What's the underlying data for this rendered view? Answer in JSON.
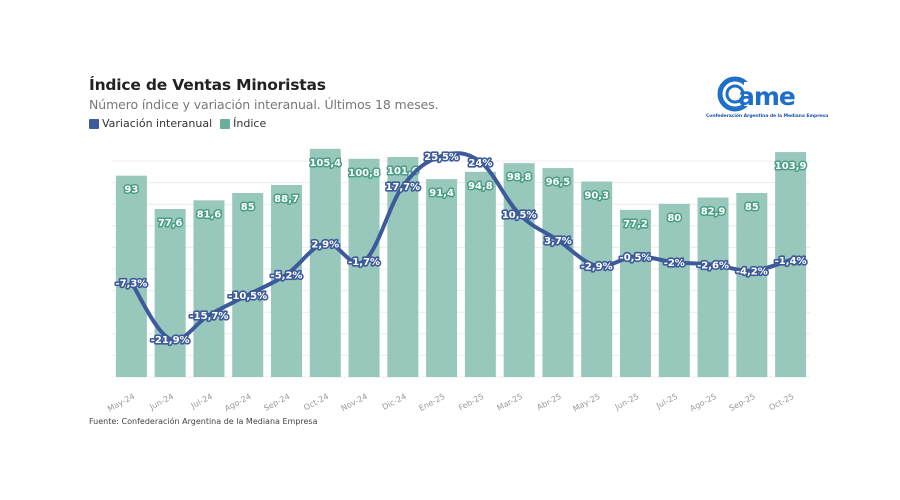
{
  "header": {
    "title": "Índice de Ventas Minoristas",
    "subtitle": "Número índice y variación interanual. Últimos 18 meses."
  },
  "legend": [
    {
      "label": "Variación interanual",
      "color": "#3d5b9a"
    },
    {
      "label": "Índice",
      "color": "#68b09b"
    }
  ],
  "logo": {
    "text": "came",
    "tagline": "Confederación Argentina de la Mediana Empresa",
    "color": "#1f6fc6"
  },
  "source": "Fuente: Confederación Argentina de la Mediana Empresa",
  "colors": {
    "bar": "#98c8bb",
    "line": "#3d5b9a",
    "grid": "#ececec"
  },
  "chart_data": {
    "type": "bar",
    "title": "Índice de Ventas Minoristas",
    "subtitle": "Número índice y variación interanual. Últimos 18 meses.",
    "xlabel": "",
    "ylabel": "",
    "grid": true,
    "legend_position": "top-left",
    "categories": [
      "May-24",
      "Jun-24",
      "Jul-24",
      "Ago-24",
      "Sep-24",
      "Oct-24",
      "Nov-24",
      "Dic-24",
      "Ene-25",
      "Feb-25",
      "Mar-25",
      "Abr-25",
      "May-25",
      "Jun-25",
      "Jul-25",
      "Ago-25",
      "Sep-25",
      "Oct-25"
    ],
    "series": [
      {
        "name": "Índice",
        "type": "bar",
        "values": [
          93,
          77.6,
          81.6,
          85,
          88.7,
          105.4,
          100.8,
          101.6,
          91.4,
          94.8,
          98.8,
          96.5,
          90.3,
          77.2,
          80,
          82.9,
          85,
          103.9
        ],
        "labels": [
          "93",
          "77,6",
          "81,6",
          "85",
          "88,7",
          "105,4",
          "100,8",
          "101,6",
          "91,4",
          "94,8",
          "98,8",
          "96,5",
          "90,3",
          "77,2",
          "80",
          "82,9",
          "85",
          "103,9"
        ],
        "ylim": [
          0,
          110
        ]
      },
      {
        "name": "Variación interanual",
        "type": "line",
        "unit": "%",
        "values": [
          -7.3,
          -21.9,
          -15.7,
          -10.5,
          -5.2,
          2.9,
          -1.7,
          17.7,
          25.5,
          24,
          10.5,
          3.7,
          -2.9,
          -0.5,
          -2,
          -2.6,
          -4.2,
          -1.4
        ],
        "labels": [
          "-7,3%",
          "-21,9%",
          "-15,7%",
          "-10,5%",
          "-5,2%",
          "2,9%",
          "-1,7%",
          "17,7%",
          "25,5%",
          "24%",
          "10,5%",
          "3,7%",
          "-2,9%",
          "-0,5%",
          "-2%",
          "-2,6%",
          "-4,2%",
          "-1,4%"
        ],
        "ylim": [
          -32,
          29
        ]
      }
    ]
  }
}
